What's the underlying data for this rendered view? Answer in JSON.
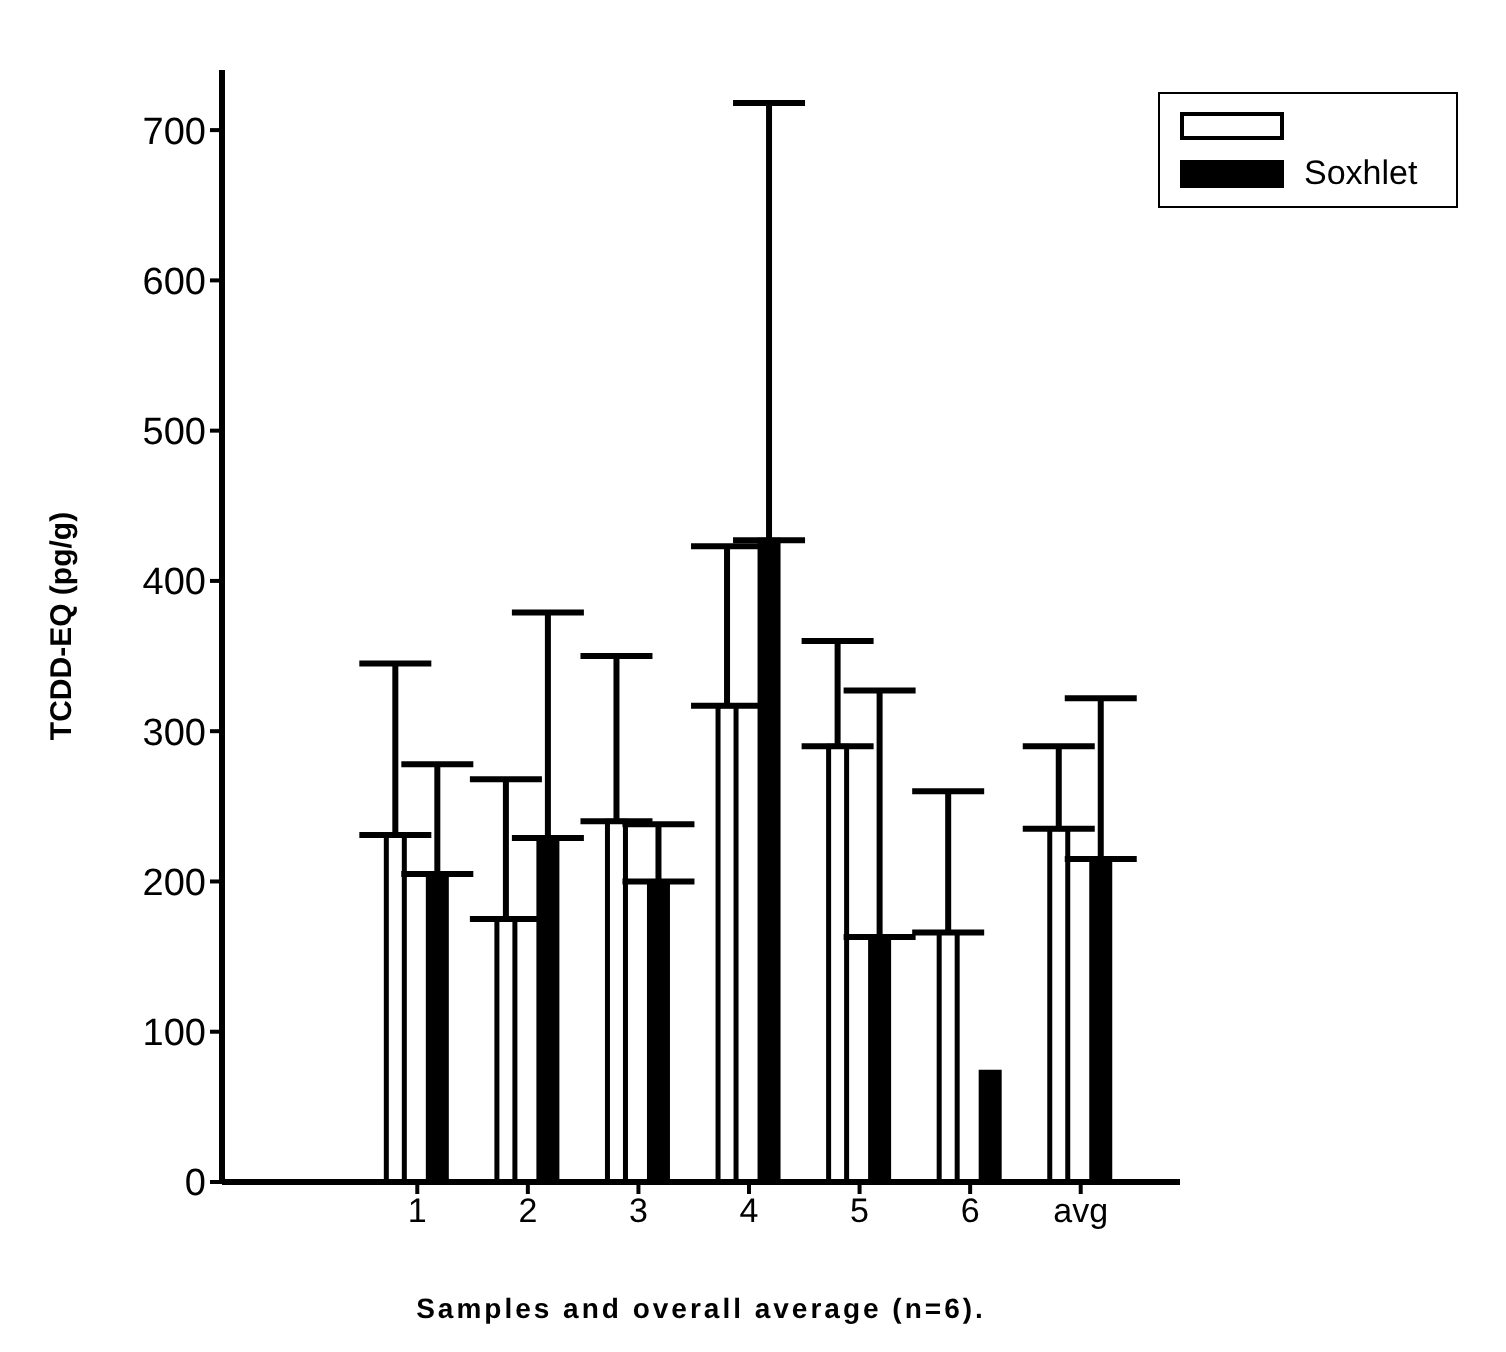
{
  "chart_data": {
    "type": "bar",
    "xlabel": "Samples and overall average (n=6).",
    "ylabel": "TCDD-EQ (pg/g)",
    "categories": [
      "1",
      "2",
      "3",
      "4",
      "5",
      "6",
      "avg"
    ],
    "series": [
      {
        "color": "#ffffff",
        "values": [
          231,
          175,
          240,
          317,
          290,
          166,
          235
        ],
        "errors": [
          [
            231,
            345
          ],
          [
            175,
            268
          ],
          [
            240,
            350
          ],
          [
            317,
            423
          ],
          [
            290,
            360
          ],
          [
            166,
            260
          ],
          [
            235,
            290
          ]
        ]
      },
      {
        "name": "Soxhlet",
        "color": "#000000",
        "values": [
          205,
          229,
          200,
          427,
          163,
          73,
          215
        ],
        "errors": [
          [
            205,
            278
          ],
          [
            229,
            379
          ],
          [
            200,
            238
          ],
          [
            427,
            718
          ],
          [
            163,
            327
          ],
          null,
          [
            215,
            322
          ]
        ]
      }
    ],
    "ylim": [
      0,
      740
    ],
    "yticks": [
      0,
      100,
      200,
      300,
      400,
      500,
      600,
      700
    ],
    "grid": false,
    "legend": "top right"
  }
}
